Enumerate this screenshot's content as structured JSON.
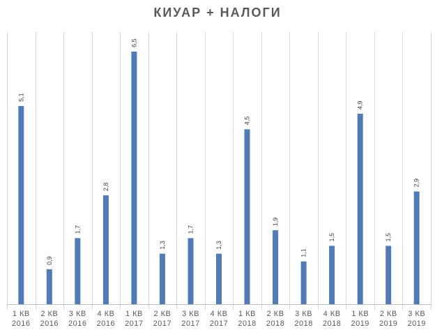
{
  "chart_data": {
    "type": "bar",
    "title": "КИУАР + НАЛОГИ",
    "categories": [
      [
        "1 КВ",
        "2016"
      ],
      [
        "2 КВ",
        "2016"
      ],
      [
        "3 КВ",
        "2016"
      ],
      [
        "4 КВ",
        "2016"
      ],
      [
        "1 КВ",
        "2017"
      ],
      [
        "2 КВ",
        "2017"
      ],
      [
        "3 КВ",
        "2017"
      ],
      [
        "4 КВ",
        "2017"
      ],
      [
        "1 КВ",
        "2018"
      ],
      [
        "2 КВ",
        "2018"
      ],
      [
        "3 КВ",
        "2018"
      ],
      [
        "4 КВ",
        "2018"
      ],
      [
        "1 КВ",
        "2019"
      ],
      [
        "2 КВ",
        "2019"
      ],
      [
        "3 КВ",
        "2019"
      ]
    ],
    "values": [
      5.1,
      0.9,
      1.7,
      2.8,
      6.5,
      1.3,
      1.7,
      1.3,
      4.5,
      1.9,
      1.1,
      1.5,
      4.9,
      1.5,
      2.9
    ],
    "data_labels": [
      "5,1",
      "0,9",
      "1,7",
      "2,8",
      "6,5",
      "1,3",
      "1,7",
      "1,3",
      "4,5",
      "1,9",
      "1,1",
      "1,5",
      "4,9",
      "1,5",
      "2,9"
    ],
    "xlabel": "",
    "ylabel": "",
    "ylim": [
      0,
      7
    ],
    "grid": "vertical category separators",
    "legend": "none",
    "colors": {
      "bar": "#4f7cb8",
      "grid": "#d9d9d9",
      "axis": "#bfbfbf",
      "text": "#595959"
    }
  }
}
